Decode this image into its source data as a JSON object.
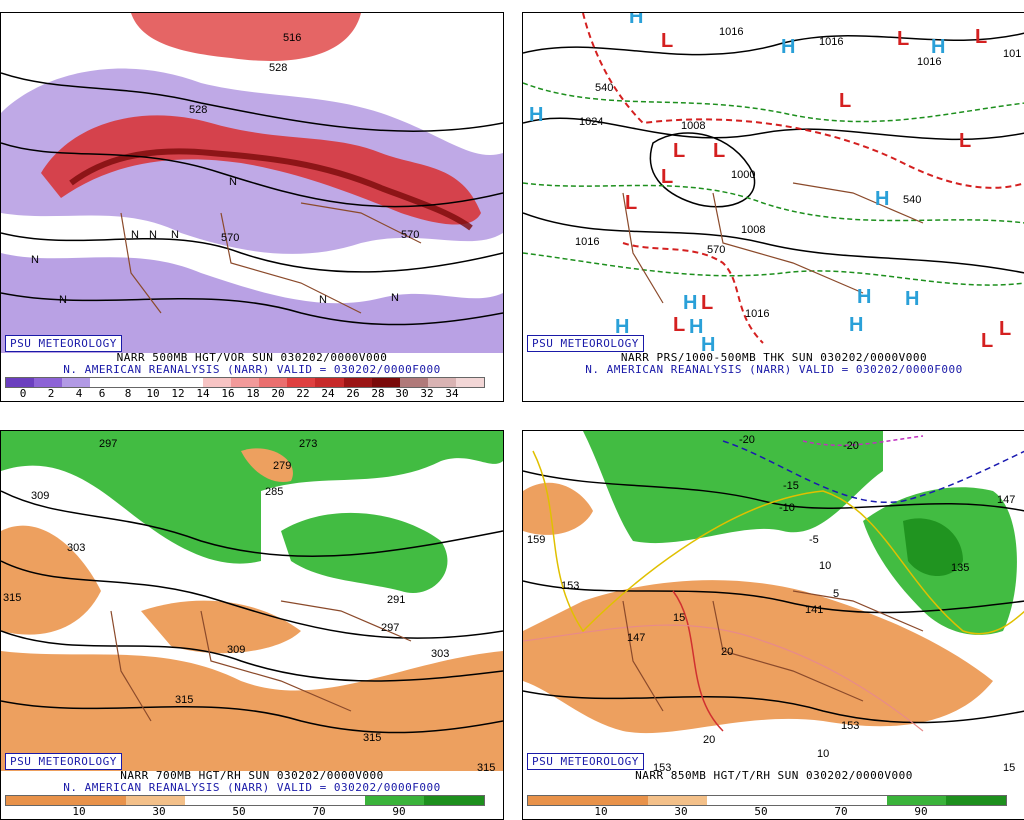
{
  "panels": {
    "p1": {
      "watermark": "PSU METEOROLOGY",
      "line1": "NARR 500MB HGT/VOR SUN 030202/0000V000",
      "line2": "N. AMERICAN REANALYSIS (NARR) VALID = 030202/0000F000",
      "ticks": [
        "0",
        "2",
        "4",
        "6",
        "8",
        "10",
        "12",
        "14",
        "16",
        "18",
        "20",
        "22",
        "24",
        "26",
        "28",
        "30",
        "32",
        "34"
      ],
      "contour_labels": [
        "516",
        "528",
        "528",
        "570",
        "570"
      ],
      "symbols": [
        "N",
        "N",
        "N",
        "N",
        "N",
        "N",
        "N",
        "N"
      ]
    },
    "p2": {
      "watermark": "PSU METEOROLOGY",
      "line1": "NARR PRS/1000-500MB THK SUN 030202/0000V000",
      "line2": "N. AMERICAN REANALYSIS (NARR) VALID = 030202/0000F000",
      "contour_labels": [
        "1016",
        "1016",
        "1016",
        "1024",
        "1008",
        "1000",
        "1008",
        "1016",
        "1016",
        "101",
        "540",
        "570",
        "540"
      ],
      "highs": [
        "H",
        "H",
        "H",
        "H",
        "H",
        "H",
        "H",
        "H",
        "H",
        "H",
        "H",
        "H"
      ],
      "lows": [
        "L",
        "L",
        "L",
        "L",
        "L",
        "L",
        "L",
        "L",
        "L",
        "L",
        "L",
        "L",
        "L"
      ]
    },
    "p3": {
      "watermark": "PSU METEOROLOGY",
      "line1": "NARR 700MB HGT/RH SUN 030202/0000V000",
      "line2": "N. AMERICAN REANALYSIS (NARR) VALID = 030202/0000F000",
      "ticks": [
        "10",
        "30",
        "50",
        "70",
        "90"
      ],
      "contour_labels": [
        "297",
        "273",
        "279",
        "285",
        "309",
        "303",
        "315",
        "309",
        "315",
        "297",
        "303",
        "291",
        "315",
        "315"
      ]
    },
    "p4": {
      "watermark": "PSU METEOROLOGY",
      "line1": "NARR 850MB HGT/T/RH SUN 030202/0000V000",
      "ticks": [
        "10",
        "30",
        "50",
        "70",
        "90"
      ],
      "contour_labels": [
        "159",
        "153",
        "147",
        "141",
        "135",
        "147",
        "153",
        "153"
      ],
      "temp_labels": [
        "-20",
        "-20",
        "-15",
        "-10",
        "-5",
        "5",
        "15",
        "20",
        "20",
        "10",
        "10",
        "15"
      ]
    }
  },
  "colors": {
    "vort_bar": [
      "#6b3fbf",
      "#8d63d6",
      "#b29ae5",
      "#ffffff",
      "#ffffff",
      "#ffffff",
      "#ffffff",
      "#f7c4c4",
      "#f29a9a",
      "#ea6f6f",
      "#df4040",
      "#c72a2a",
      "#9b1515",
      "#7a0a0a",
      "#b07a7a",
      "#d9b3b3",
      "#f2d6d6"
    ],
    "rh_bar": [
      "#e8924a",
      "#e8924a",
      "#f3c089",
      "#ffffff",
      "#ffffff",
      "#ffffff",
      "#3ab33a",
      "#1d8f1d"
    ],
    "green": "#2db52d",
    "orange": "#eda05f",
    "purple": "#8a63d2",
    "red": "#d93a3a",
    "borders": "#8b4a2b"
  }
}
